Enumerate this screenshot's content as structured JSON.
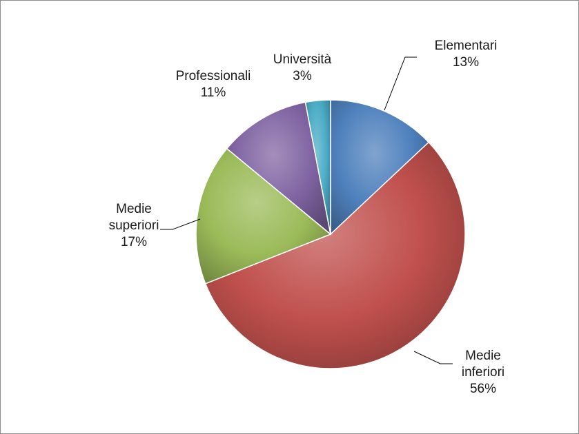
{
  "chart_data": {
    "type": "pie",
    "title": "",
    "slices": [
      {
        "name": "Elementari",
        "label_lines": [
          "Elementari",
          "13%"
        ],
        "value": 13,
        "color": "#4f81bd"
      },
      {
        "name": "Medie inferiori",
        "label_lines": [
          "Medie",
          "inferiori",
          "56%"
        ],
        "value": 56,
        "color": "#c0504d"
      },
      {
        "name": "Medie superiori",
        "label_lines": [
          "Medie",
          "superiori",
          "17%"
        ],
        "value": 17,
        "color": "#9bbb59"
      },
      {
        "name": "Professionali",
        "label_lines": [
          "Professionali",
          "11%"
        ],
        "value": 11,
        "color": "#8064a2"
      },
      {
        "name": "Università",
        "label_lines": [
          "Università",
          "3%"
        ],
        "value": 3,
        "color": "#4bacc6"
      }
    ],
    "legend": "none",
    "data_labels": "outside-with-leader-lines"
  }
}
